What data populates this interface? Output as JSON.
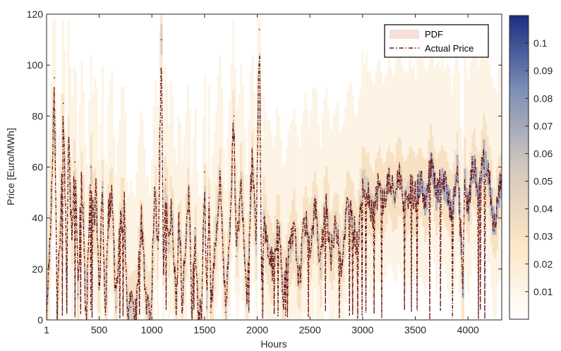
{
  "chart_data": {
    "type": "line",
    "title": "",
    "xlabel": "Hours",
    "ylabel": "Price [Euro/MWh]",
    "xlim": [
      1,
      4320
    ],
    "ylim": [
      0,
      120
    ],
    "xticks": [
      "1",
      "500",
      "1000",
      "1500",
      "2000",
      "2500",
      "3000",
      "3500",
      "4000"
    ],
    "yticks": [
      "0",
      "20",
      "40",
      "60",
      "80",
      "100",
      "120"
    ],
    "legend": {
      "position": "top-right",
      "entries": [
        "PDF",
        "Actual Price"
      ]
    },
    "colorbar": {
      "range": [
        0,
        0.11
      ],
      "ticks": [
        "0.01",
        "0.02",
        "0.03",
        "0.04",
        "0.05",
        "0.06",
        "0.07",
        "0.08",
        "0.09",
        "0.1"
      ],
      "colors": [
        "#ffffff",
        "#fce6c4",
        "#d4c8be",
        "#7e90b8",
        "#1c2e80"
      ]
    },
    "series": [
      {
        "name": "Actual Price",
        "color": "#6b0f0f",
        "style": "dash-dot",
        "x": [
          1,
          40,
          75,
          100,
          140,
          160,
          190,
          210,
          240,
          270,
          300,
          330,
          350,
          380,
          400,
          420,
          450,
          470,
          500,
          530,
          560,
          590,
          620,
          660,
          700,
          740,
          770,
          800,
          850,
          900,
          950,
          990,
          1030,
          1060,
          1090,
          1110,
          1130,
          1160,
          1190,
          1230,
          1260,
          1290,
          1320,
          1350,
          1380,
          1410,
          1440,
          1470,
          1500,
          1520,
          1545,
          1560,
          1600,
          1650,
          1700,
          1740,
          1780,
          1800,
          1850,
          1900,
          1950,
          1990,
          2020,
          2040,
          2060,
          2100,
          2150,
          2200,
          2250,
          2300,
          2350,
          2400,
          2450,
          2500,
          2550,
          2600,
          2650,
          2700,
          2750,
          2800,
          2850,
          2900,
          2950,
          3000,
          3050,
          3100,
          3150,
          3200,
          3250,
          3300,
          3350,
          3400,
          3450,
          3500,
          3550,
          3600,
          3650,
          3700,
          3750,
          3800,
          3850,
          3900,
          3930,
          3950,
          3970,
          4000,
          4050,
          4100,
          4150,
          4200,
          4250,
          4300
        ],
        "y": [
          2,
          38,
          95,
          3,
          48,
          85,
          20,
          70,
          32,
          62,
          10,
          55,
          44,
          2,
          28,
          60,
          35,
          50,
          12,
          52,
          2,
          42,
          48,
          5,
          38,
          44,
          2,
          5,
          3,
          40,
          5,
          2,
          50,
          28,
          110,
          20,
          55,
          30,
          46,
          3,
          42,
          8,
          30,
          52,
          3,
          36,
          3,
          2,
          58,
          5,
          48,
          3,
          30,
          55,
          3,
          38,
          80,
          25,
          55,
          10,
          62,
          30,
          114,
          12,
          40,
          28,
          20,
          38,
          10,
          25,
          35,
          15,
          40,
          28,
          45,
          20,
          48,
          25,
          38,
          22,
          44,
          40,
          28,
          55,
          50,
          42,
          52,
          46,
          55,
          48,
          58,
          45,
          52,
          48,
          55,
          45,
          62,
          48,
          55,
          50,
          42,
          60,
          35,
          10,
          55,
          42,
          62,
          48,
          65,
          55,
          35,
          52
        ]
      }
    ]
  }
}
